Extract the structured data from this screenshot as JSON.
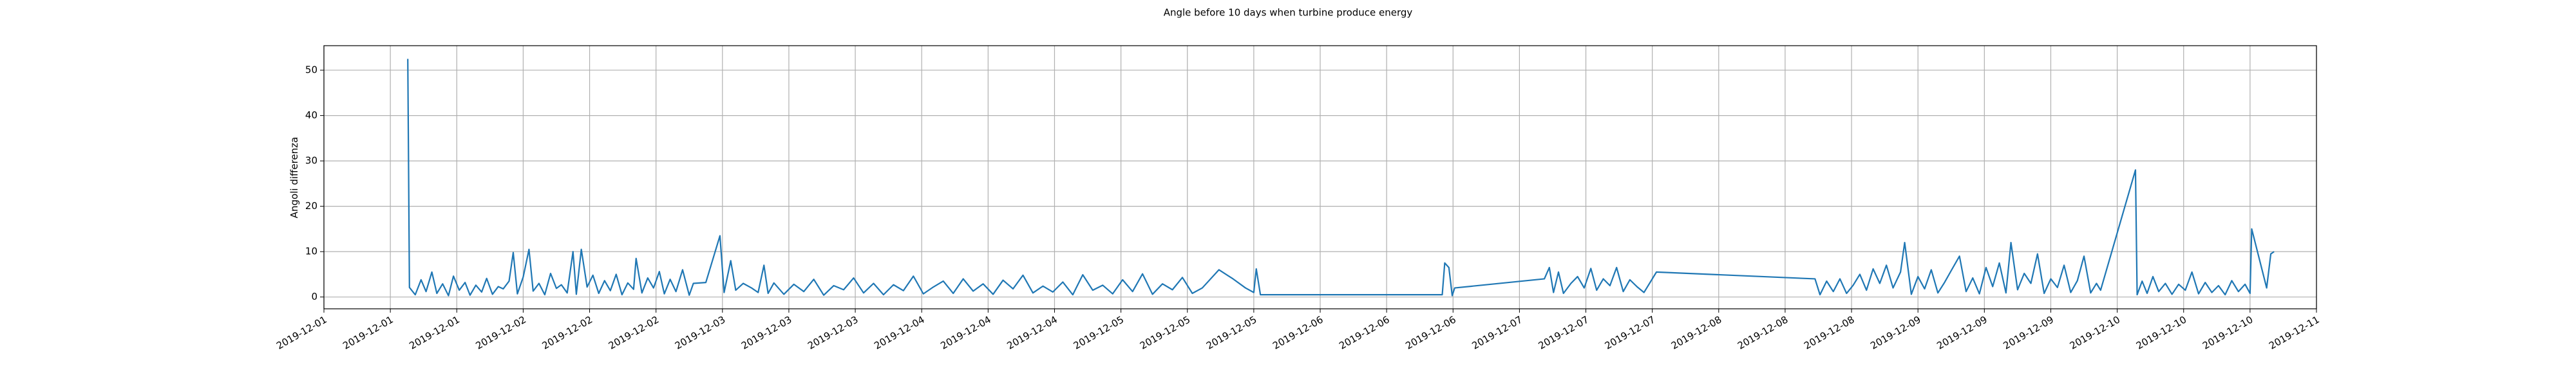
{
  "chart_data": {
    "type": "line",
    "title": "Angle before 10 days when turbine produce energy",
    "ylabel": "Angoli differenza",
    "color": "#1f77b4",
    "grid": true,
    "xlim": [
      0,
      240
    ],
    "ylim": [
      -2.6,
      55.4
    ],
    "yticks": [
      0,
      10,
      20,
      30,
      40,
      50
    ],
    "xticks": [
      {
        "value": 0,
        "label": "2019-12-01"
      },
      {
        "value": 8,
        "label": "2019-12-01"
      },
      {
        "value": 16,
        "label": "2019-12-01"
      },
      {
        "value": 24,
        "label": "2019-12-02"
      },
      {
        "value": 32,
        "label": "2019-12-02"
      },
      {
        "value": 40,
        "label": "2019-12-02"
      },
      {
        "value": 48,
        "label": "2019-12-03"
      },
      {
        "value": 56,
        "label": "2019-12-03"
      },
      {
        "value": 64,
        "label": "2019-12-03"
      },
      {
        "value": 72,
        "label": "2019-12-04"
      },
      {
        "value": 80,
        "label": "2019-12-04"
      },
      {
        "value": 88,
        "label": "2019-12-04"
      },
      {
        "value": 96,
        "label": "2019-12-05"
      },
      {
        "value": 104,
        "label": "2019-12-05"
      },
      {
        "value": 112,
        "label": "2019-12-05"
      },
      {
        "value": 120,
        "label": "2019-12-06"
      },
      {
        "value": 128,
        "label": "2019-12-06"
      },
      {
        "value": 136,
        "label": "2019-12-06"
      },
      {
        "value": 144,
        "label": "2019-12-07"
      },
      {
        "value": 152,
        "label": "2019-12-07"
      },
      {
        "value": 160,
        "label": "2019-12-07"
      },
      {
        "value": 168,
        "label": "2019-12-08"
      },
      {
        "value": 176,
        "label": "2019-12-08"
      },
      {
        "value": 184,
        "label": "2019-12-08"
      },
      {
        "value": 192,
        "label": "2019-12-09"
      },
      {
        "value": 200,
        "label": "2019-12-09"
      },
      {
        "value": 208,
        "label": "2019-12-09"
      },
      {
        "value": 216,
        "label": "2019-12-10"
      },
      {
        "value": 224,
        "label": "2019-12-10"
      },
      {
        "value": 232,
        "label": "2019-12-10"
      },
      {
        "value": 240,
        "label": "2019-12-11"
      }
    ],
    "x": [
      10.1,
      10.3,
      11.0,
      11.7,
      12.3,
      13.0,
      13.6,
      14.3,
      15.0,
      15.6,
      16.3,
      17.0,
      17.6,
      18.3,
      19.0,
      19.6,
      20.3,
      21.0,
      21.6,
      22.3,
      22.8,
      23.3,
      24.0,
      24.7,
      25.2,
      25.9,
      26.6,
      27.3,
      28.0,
      28.6,
      29.3,
      30.0,
      30.4,
      31.0,
      31.7,
      32.4,
      33.1,
      33.8,
      34.5,
      35.2,
      35.9,
      36.6,
      37.3,
      37.6,
      38.3,
      39.0,
      39.7,
      40.4,
      41.0,
      41.7,
      42.4,
      43.2,
      44.0,
      44.5,
      46.0,
      47.7,
      48.2,
      49.0,
      49.6,
      50.5,
      51.5,
      52.3,
      53.0,
      53.5,
      54.2,
      55.4,
      56.6,
      57.8,
      59.0,
      60.2,
      61.4,
      62.6,
      63.8,
      65.0,
      66.2,
      67.4,
      68.6,
      69.8,
      71.0,
      72.2,
      73.4,
      74.6,
      75.8,
      77.0,
      78.2,
      79.4,
      80.6,
      81.8,
      83.0,
      84.2,
      85.4,
      86.6,
      87.8,
      89.0,
      90.2,
      91.4,
      92.6,
      93.8,
      95.0,
      96.2,
      97.4,
      98.6,
      99.8,
      101.0,
      102.2,
      103.4,
      104.6,
      105.8,
      107.8,
      109.5,
      111.0,
      112.0,
      112.3,
      112.8,
      134.7,
      135.0,
      135.5,
      135.9,
      136.2,
      147.0,
      147.6,
      148.1,
      148.7,
      149.3,
      150.2,
      151.0,
      151.8,
      152.6,
      153.3,
      154.1,
      154.9,
      155.7,
      156.5,
      157.3,
      158.2,
      159.0,
      160.5,
      179.6,
      180.2,
      181.0,
      181.8,
      182.6,
      183.4,
      184.2,
      185.0,
      185.8,
      186.6,
      187.4,
      188.2,
      189.0,
      189.9,
      190.4,
      191.2,
      192.0,
      192.8,
      193.6,
      194.4,
      195.2,
      196.0,
      197.0,
      197.8,
      198.6,
      199.4,
      200.2,
      201.0,
      201.8,
      202.6,
      203.2,
      204.0,
      204.8,
      205.6,
      206.4,
      207.2,
      208.0,
      208.8,
      209.6,
      210.4,
      211.2,
      212.0,
      212.8,
      213.5,
      214.0,
      218.2,
      218.4,
      219.0,
      219.6,
      220.3,
      221.0,
      221.8,
      222.6,
      223.4,
      224.2,
      225.0,
      225.8,
      226.6,
      227.4,
      228.2,
      229.0,
      229.8,
      230.6,
      231.4,
      232.0,
      232.2,
      234.0,
      234.5,
      234.9
    ],
    "values": [
      52.5,
      2.1,
      0.5,
      3.8,
      1.2,
      5.5,
      0.8,
      2.9,
      0.3,
      4.6,
      1.5,
      3.2,
      0.4,
      2.6,
      1.1,
      4.1,
      0.6,
      2.3,
      1.8,
      3.5,
      9.8,
      0.7,
      4.4,
      10.5,
      1.3,
      3.0,
      0.5,
      5.2,
      1.9,
      2.7,
      0.9,
      10.0,
      0.6,
      10.5,
      2.2,
      4.8,
      0.8,
      3.6,
      1.4,
      5.0,
      0.5,
      3.1,
      1.7,
      8.5,
      0.9,
      4.2,
      2.0,
      5.6,
      0.7,
      3.9,
      1.2,
      6.0,
      0.4,
      3.0,
      3.2,
      13.5,
      1.0,
      8.0,
      1.5,
      3.0,
      2.0,
      1.0,
      7.0,
      0.8,
      3.1,
      0.6,
      2.8,
      1.2,
      3.9,
      0.4,
      2.5,
      1.6,
      4.2,
      0.9,
      3.0,
      0.5,
      2.7,
      1.4,
      4.6,
      0.7,
      2.2,
      3.5,
      0.8,
      4.0,
      1.3,
      2.9,
      0.6,
      3.7,
      1.8,
      4.8,
      0.9,
      2.4,
      1.1,
      3.3,
      0.5,
      4.9,
      1.5,
      2.6,
      0.7,
      3.8,
      1.2,
      5.1,
      0.6,
      2.9,
      1.6,
      4.3,
      0.8,
      2.0,
      6.0,
      4.0,
      2.0,
      1.0,
      6.2,
      0.5,
      0.5,
      7.5,
      6.5,
      0.3,
      2.0,
      4.0,
      6.5,
      1.0,
      5.5,
      0.8,
      3.0,
      4.5,
      2.0,
      6.3,
      1.5,
      4.0,
      2.5,
      6.5,
      1.2,
      3.8,
      2.2,
      1.0,
      5.5,
      4.0,
      0.5,
      3.5,
      1.2,
      4.0,
      0.8,
      2.6,
      5.0,
      1.5,
      6.2,
      3.0,
      7.0,
      2.0,
      5.5,
      12.0,
      0.6,
      4.5,
      1.8,
      6.0,
      0.9,
      3.2,
      5.8,
      9.0,
      1.2,
      4.2,
      0.7,
      6.5,
      2.3,
      7.5,
      0.9,
      12.0,
      1.6,
      5.2,
      3.0,
      9.5,
      0.8,
      4.0,
      2.1,
      7.0,
      1.0,
      3.6,
      9.0,
      0.9,
      3.0,
      1.5,
      28.0,
      0.5,
      3.5,
      0.8,
      4.5,
      1.2,
      3.0,
      0.6,
      2.8,
      1.5,
      5.5,
      0.7,
      3.2,
      1.0,
      2.5,
      0.5,
      3.6,
      1.2,
      2.8,
      0.8,
      15.0,
      2.0,
      9.5,
      10.0
    ]
  }
}
